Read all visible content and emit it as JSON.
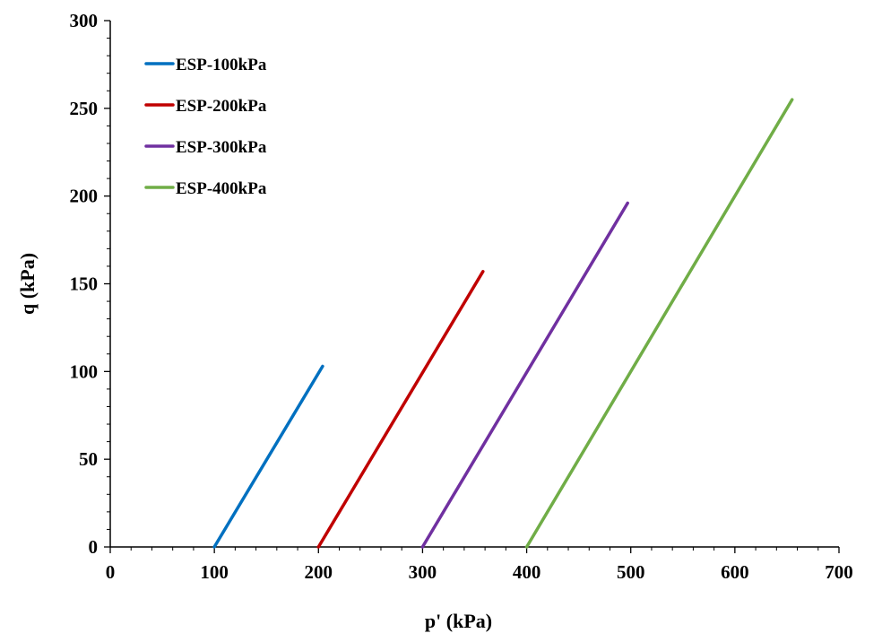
{
  "chart_data": {
    "type": "line",
    "title": "",
    "xlabel": "p' (kPa)",
    "ylabel": "q (kPa)",
    "xlim": [
      0,
      700
    ],
    "ylim": [
      0,
      300
    ],
    "x_ticks": [
      0,
      100,
      200,
      300,
      400,
      500,
      600,
      700
    ],
    "y_ticks": [
      0,
      50,
      100,
      150,
      200,
      250,
      300
    ],
    "grid": false,
    "legend_position": "top-left",
    "series": [
      {
        "name": "ESP-100kPa",
        "color": "#0070C0",
        "x": [
          100,
          204
        ],
        "y": [
          0,
          103
        ]
      },
      {
        "name": "ESP-200kPa",
        "color": "#C00000",
        "x": [
          200,
          358
        ],
        "y": [
          0,
          157
        ]
      },
      {
        "name": "ESP-300kPa",
        "color": "#7030A0",
        "x": [
          300,
          497
        ],
        "y": [
          0,
          196
        ]
      },
      {
        "name": "ESP-400kPa",
        "color": "#70AD47",
        "x": [
          400,
          655
        ],
        "y": [
          0,
          255
        ]
      }
    ]
  }
}
